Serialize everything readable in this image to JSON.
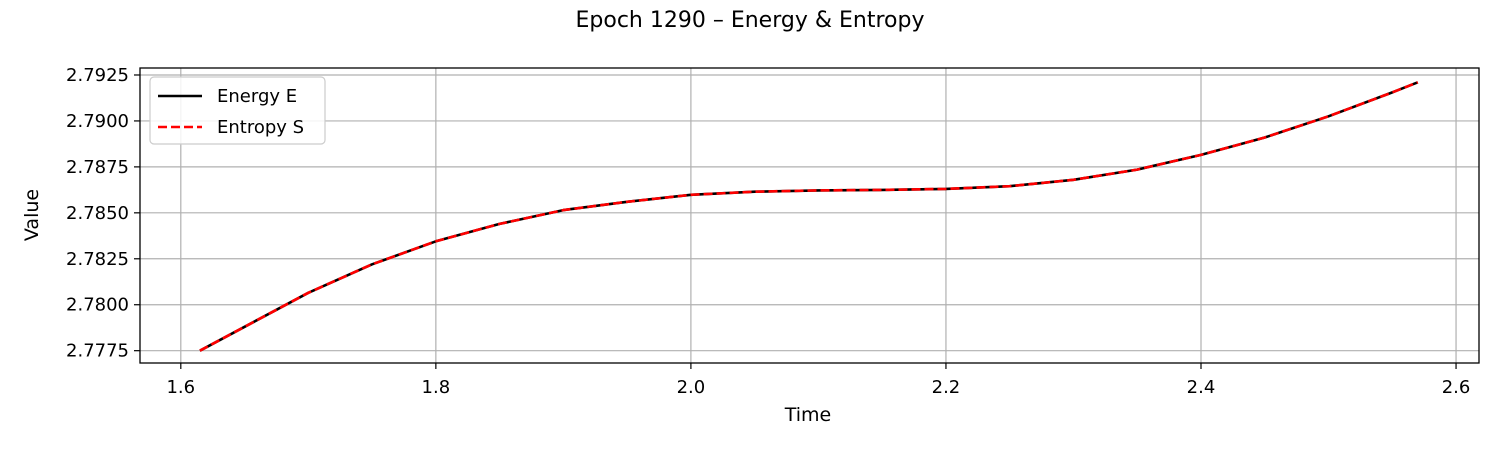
{
  "chart_data": {
    "type": "line",
    "title": "Epoch 1290 – Energy & Entropy",
    "xlabel": "Time",
    "ylabel": "Value",
    "xlim": [
      1.568,
      2.618
    ],
    "ylim": [
      2.77683,
      2.79288
    ],
    "xticks": [
      1.6,
      1.8,
      2.0,
      2.2,
      2.4,
      2.6
    ],
    "xtick_labels": [
      "1.6",
      "1.8",
      "2.0",
      "2.2",
      "2.4",
      "2.6"
    ],
    "yticks": [
      2.7775,
      2.78,
      2.7825,
      2.785,
      2.7875,
      2.79,
      2.7925
    ],
    "ytick_labels": [
      "2.7775",
      "2.7800",
      "2.7825",
      "2.7850",
      "2.7875",
      "2.7900",
      "2.7925"
    ],
    "grid": true,
    "legend_position": "top-left",
    "x": [
      1.615,
      1.65,
      1.7,
      1.75,
      1.8,
      1.85,
      1.9,
      1.95,
      2.0,
      2.05,
      2.1,
      2.15,
      2.2,
      2.25,
      2.3,
      2.35,
      2.4,
      2.45,
      2.5,
      2.55,
      2.57
    ],
    "series": [
      {
        "name": "Energy E",
        "color": "#000000",
        "style": "solid",
        "values": [
          2.7775,
          2.7788,
          2.78065,
          2.7822,
          2.78345,
          2.7844,
          2.78515,
          2.7856,
          2.78598,
          2.78615,
          2.78622,
          2.78625,
          2.7863,
          2.78645,
          2.7868,
          2.78735,
          2.78815,
          2.7891,
          2.79025,
          2.79155,
          2.7921
        ]
      },
      {
        "name": "Entropy S",
        "color": "#ff0000",
        "style": "dashed",
        "values": [
          2.7775,
          2.7788,
          2.78065,
          2.7822,
          2.78345,
          2.7844,
          2.78515,
          2.7856,
          2.78598,
          2.78615,
          2.78622,
          2.78625,
          2.7863,
          2.78645,
          2.7868,
          2.78735,
          2.78815,
          2.7891,
          2.79025,
          2.79155,
          2.7921
        ]
      }
    ]
  }
}
